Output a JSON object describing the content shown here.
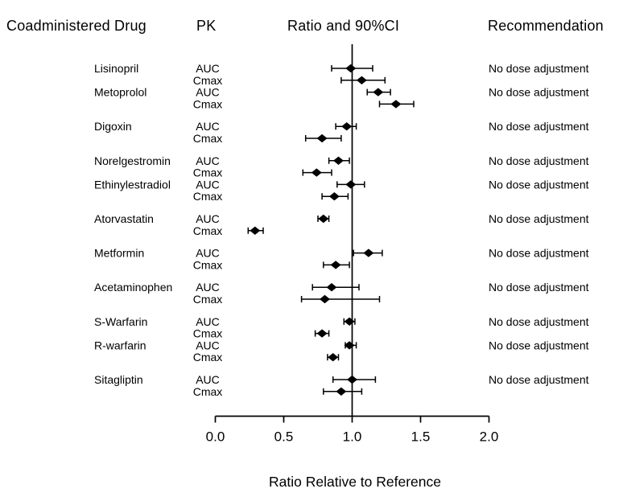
{
  "headers": {
    "coadministered_drug": "Coadministered Drug",
    "pk": "PK",
    "ratio_ci": "Ratio and 90%CI",
    "recommendation": "Recommendation"
  },
  "chart_data": {
    "type": "forest",
    "title": "",
    "xlabel": "Ratio Relative to Reference",
    "ylabel": "",
    "xlim": [
      0.0,
      2.0
    ],
    "xticks": [
      "0.0",
      "0.5",
      "1.0",
      "1.5",
      "2.0"
    ],
    "reference_line": 1.0,
    "ci_level": "90%",
    "marker": "diamond",
    "marker_color": "#000000",
    "line_color": "#000000",
    "grid": false,
    "groups": [
      {
        "drug": "Lisinopril",
        "recommendation": "No dose adjustment",
        "gap_before": false,
        "rows": [
          {
            "pk": "AUC",
            "ratio": 0.99,
            "ci_low": 0.85,
            "ci_high": 1.15
          },
          {
            "pk": "Cmax",
            "ratio": 1.07,
            "ci_low": 0.92,
            "ci_high": 1.24
          }
        ]
      },
      {
        "drug": "Metoprolol",
        "recommendation": "No dose adjustment",
        "gap_before": false,
        "rows": [
          {
            "pk": "AUC",
            "ratio": 1.19,
            "ci_low": 1.11,
            "ci_high": 1.28
          },
          {
            "pk": "Cmax",
            "ratio": 1.32,
            "ci_low": 1.2,
            "ci_high": 1.45
          }
        ]
      },
      {
        "drug": "Digoxin",
        "recommendation": "No dose adjustment",
        "gap_before": true,
        "rows": [
          {
            "pk": "AUC",
            "ratio": 0.96,
            "ci_low": 0.88,
            "ci_high": 1.03
          },
          {
            "pk": "Cmax",
            "ratio": 0.78,
            "ci_low": 0.66,
            "ci_high": 0.92
          }
        ]
      },
      {
        "drug": "Norelgestromin",
        "recommendation": "No dose adjustment",
        "gap_before": true,
        "rows": [
          {
            "pk": "AUC",
            "ratio": 0.9,
            "ci_low": 0.83,
            "ci_high": 0.98
          },
          {
            "pk": "Cmax",
            "ratio": 0.74,
            "ci_low": 0.64,
            "ci_high": 0.85
          }
        ]
      },
      {
        "drug": "Ethinylestradiol",
        "recommendation": "No dose adjustment",
        "gap_before": false,
        "rows": [
          {
            "pk": "AUC",
            "ratio": 0.99,
            "ci_low": 0.89,
            "ci_high": 1.09
          },
          {
            "pk": "Cmax",
            "ratio": 0.87,
            "ci_low": 0.78,
            "ci_high": 0.97
          }
        ]
      },
      {
        "drug": "Atorvastatin",
        "recommendation": "No dose adjustment",
        "gap_before": true,
        "rows": [
          {
            "pk": "AUC",
            "ratio": 0.79,
            "ci_low": 0.75,
            "ci_high": 0.83
          },
          {
            "pk": "Cmax",
            "ratio": 0.29,
            "ci_low": 0.24,
            "ci_high": 0.35
          }
        ]
      },
      {
        "drug": "Metformin",
        "recommendation": "No dose adjustment",
        "gap_before": true,
        "rows": [
          {
            "pk": "AUC",
            "ratio": 1.12,
            "ci_low": 1.01,
            "ci_high": 1.22
          },
          {
            "pk": "Cmax",
            "ratio": 0.88,
            "ci_low": 0.79,
            "ci_high": 0.98
          }
        ]
      },
      {
        "drug": "Acetaminophen",
        "recommendation": "No dose adjustment",
        "gap_before": true,
        "rows": [
          {
            "pk": "AUC",
            "ratio": 0.85,
            "ci_low": 0.71,
            "ci_high": 1.05
          },
          {
            "pk": "Cmax",
            "ratio": 0.8,
            "ci_low": 0.63,
            "ci_high": 1.2
          }
        ]
      },
      {
        "drug": "S-Warfarin",
        "recommendation": "No dose adjustment",
        "gap_before": true,
        "rows": [
          {
            "pk": "AUC",
            "ratio": 0.98,
            "ci_low": 0.94,
            "ci_high": 1.02
          },
          {
            "pk": "Cmax",
            "ratio": 0.78,
            "ci_low": 0.73,
            "ci_high": 0.83
          }
        ]
      },
      {
        "drug": "R-warfarin",
        "recommendation": "No dose adjustment",
        "gap_before": false,
        "rows": [
          {
            "pk": "AUC",
            "ratio": 0.98,
            "ci_low": 0.95,
            "ci_high": 1.03
          },
          {
            "pk": "Cmax",
            "ratio": 0.86,
            "ci_low": 0.82,
            "ci_high": 0.9
          }
        ]
      },
      {
        "drug": "Sitagliptin",
        "recommendation": "No dose adjustment",
        "gap_before": true,
        "rows": [
          {
            "pk": "AUC",
            "ratio": 1.0,
            "ci_low": 0.86,
            "ci_high": 1.17
          },
          {
            "pk": "Cmax",
            "ratio": 0.92,
            "ci_low": 0.79,
            "ci_high": 1.07
          }
        ]
      }
    ]
  }
}
